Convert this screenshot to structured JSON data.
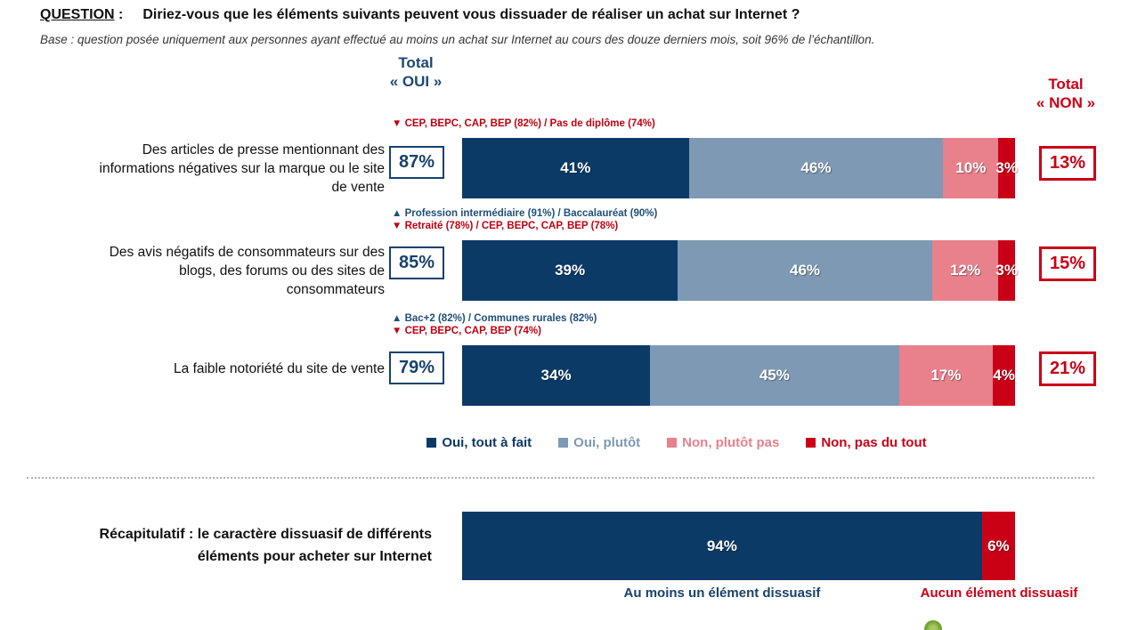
{
  "title": {
    "keyword": "QUESTION",
    "colon": " :",
    "text": "Diriez-vous que les éléments suivants peuvent vous dissuader de réaliser un achat sur Internet ?"
  },
  "base_note": "Base : question posée uniquement aux personnes ayant effectué au moins un achat sur Internet au cours des douze derniers mois, soit 96% de l’échantillon.",
  "headers": {
    "oui": [
      "Total",
      "« OUI »"
    ],
    "non": [
      "Total",
      "« NON »"
    ]
  },
  "colors": {
    "dark_blue": "#0c3a67",
    "gray_blue": "#7e99b4",
    "pink": "#e8818c",
    "red": "#ca0017",
    "annotation_blue": "#1f4e79",
    "annotation_red": "#c00010",
    "header_blue": "#1b4a75"
  },
  "rows": [
    {
      "label_lines": [
        "Des articles de presse mentionnant des",
        "informations négatives sur la marque ou le site",
        "de vente"
      ],
      "ann_down": "▼ CEP, BEPC, CAP, BEP (82%) / Pas de diplôme (74%)",
      "total_oui": "87%",
      "total_non": "13%",
      "segments": [
        {
          "label": "41%",
          "value": 41
        },
        {
          "label": "46%",
          "value": 46
        },
        {
          "label": "10%",
          "value": 10
        },
        {
          "label": "3%",
          "value": 3
        }
      ]
    },
    {
      "label_lines": [
        "Des avis négatifs de consommateurs sur des",
        "blogs, des forums ou des sites de",
        "consommateurs"
      ],
      "ann_up": "▲ Profession intermédiaire (91%) / Baccalauréat (90%)",
      "ann_down": "▼ Retraité (78%) / CEP, BEPC, CAP, BEP (78%)",
      "total_oui": "85%",
      "total_non": "15%",
      "segments": [
        {
          "label": "39%",
          "value": 39
        },
        {
          "label": "46%",
          "value": 46
        },
        {
          "label": "12%",
          "value": 12
        },
        {
          "label": "3%",
          "value": 3
        }
      ]
    },
    {
      "label_lines": [
        "La faible notoriété du site de vente"
      ],
      "ann_up": "▲ Bac+2 (82%) / Communes rurales (82%)",
      "ann_down": "▼ CEP, BEPC, CAP, BEP (74%)",
      "total_oui": "79%",
      "total_non": "21%",
      "segments": [
        {
          "label": "34%",
          "value": 34
        },
        {
          "label": "45%",
          "value": 45
        },
        {
          "label": "17%",
          "value": 17
        },
        {
          "label": "4%",
          "value": 4
        }
      ]
    }
  ],
  "legend": [
    {
      "label": "Oui, tout à fait",
      "color": "#0c3a67"
    },
    {
      "label": "Oui, plutôt",
      "color": "#7e99b4"
    },
    {
      "label": "Non, plutôt pas",
      "color": "#e8818c"
    },
    {
      "label": "Non, pas du tout",
      "color": "#ca0017"
    }
  ],
  "summary": {
    "label_lines": [
      "Récapitulatif : le caractère dissuasif de différents",
      "éléments pour acheter sur Internet"
    ],
    "segments": [
      {
        "label": "94%",
        "value": 94,
        "color": "#0c3a67"
      },
      {
        "label": "6%",
        "value": 6,
        "color": "#ca0017"
      }
    ],
    "caption_oui": "Au moins un élément dissuasif",
    "caption_non": "Aucun élément dissuasif"
  },
  "chart_data": [
    {
      "type": "bar",
      "variant": "horizontal-stacked",
      "unit": "%",
      "title": "Diriez-vous que les éléments suivants peuvent vous dissuader de réaliser un achat sur Internet ?",
      "subtitle": "Base : question posée uniquement aux personnes ayant effectué au moins un achat sur Internet au cours des douze derniers mois, soit 96% de l’échantillon.",
      "categories": [
        "Des articles de presse mentionnant des informations négatives sur la marque ou le site de vente",
        "Des avis négatifs de consommateurs sur des blogs, des forums ou des sites de consommateurs",
        "La faible notoriété du site de vente"
      ],
      "series": [
        {
          "name": "Oui, tout à fait",
          "color": "#0c3a67",
          "values": [
            41,
            39,
            34
          ]
        },
        {
          "name": "Oui, plutôt",
          "color": "#7e99b4",
          "values": [
            46,
            46,
            45
          ]
        },
        {
          "name": "Non, plutôt pas",
          "color": "#e8818c",
          "values": [
            10,
            12,
            17
          ]
        },
        {
          "name": "Non, pas du tout",
          "color": "#ca0017",
          "values": [
            3,
            3,
            4
          ]
        }
      ],
      "total_oui": [
        87,
        85,
        79
      ],
      "total_non": [
        13,
        15,
        21
      ],
      "annotations": [
        {
          "category_index": 0,
          "direction": "down",
          "text": "CEP, BEPC, CAP, BEP (82%) / Pas de diplôme (74%)"
        },
        {
          "category_index": 1,
          "direction": "up",
          "text": "Profession intermédiaire (91%) / Baccalauréat (90%)"
        },
        {
          "category_index": 1,
          "direction": "down",
          "text": "Retraité (78%) / CEP, BEPC, CAP, BEP (78%)"
        },
        {
          "category_index": 2,
          "direction": "up",
          "text": "Bac+2 (82%) / Communes rurales (82%)"
        },
        {
          "category_index": 2,
          "direction": "down",
          "text": "CEP, BEPC, CAP, BEP (74%)"
        }
      ],
      "legend_position": "bottom",
      "xlim": [
        0,
        100
      ],
      "grid": false
    },
    {
      "type": "bar",
      "variant": "horizontal-stacked",
      "unit": "%",
      "categories": [
        "Récapitulatif : le caractère dissuasif de différents éléments pour acheter sur Internet"
      ],
      "series": [
        {
          "name": "Au moins un élément dissuasif",
          "color": "#0c3a67",
          "values": [
            94
          ]
        },
        {
          "name": "Aucun élément dissuasif",
          "color": "#ca0017",
          "values": [
            6
          ]
        }
      ],
      "xlim": [
        0,
        100
      ],
      "grid": false
    }
  ]
}
